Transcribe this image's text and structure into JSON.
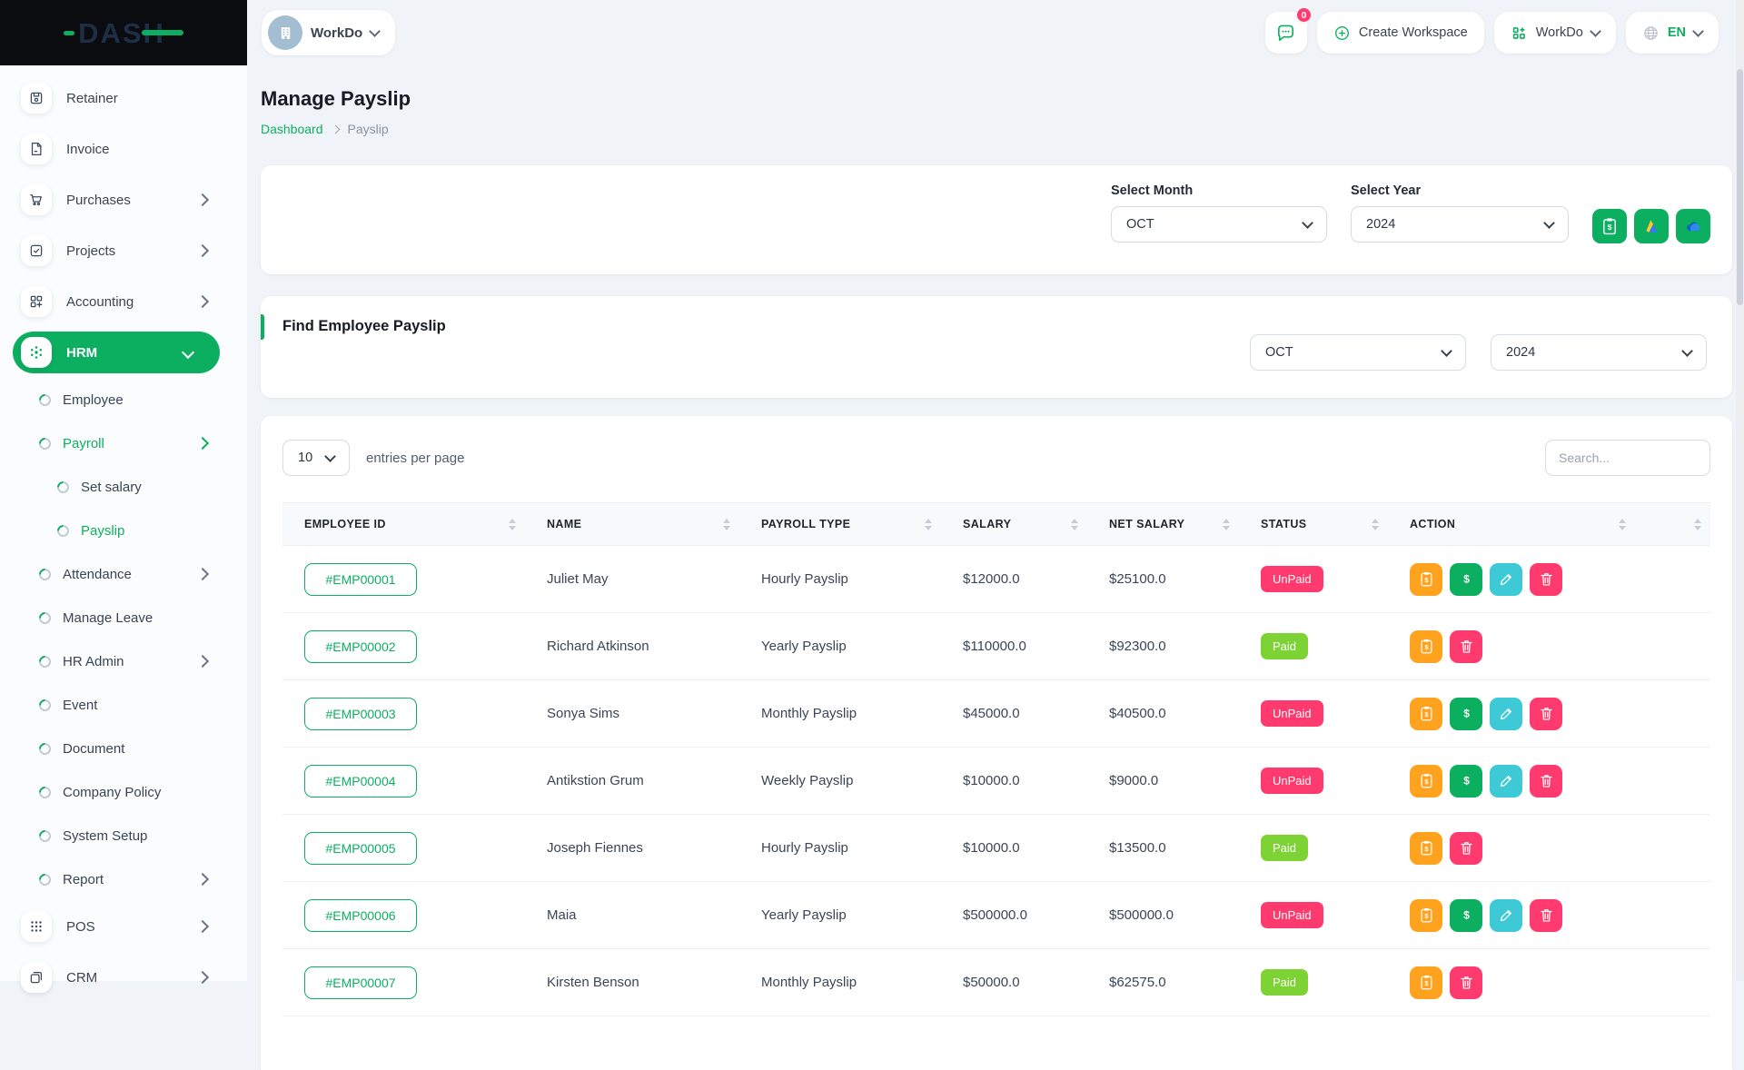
{
  "brand": {
    "logo_text": "DASH"
  },
  "topbar": {
    "workspace_switcher_label": "WorkDo",
    "messages_badge": "0",
    "create_workspace_label": "Create Workspace",
    "workdo_menu_label": "WorkDo",
    "language": "EN"
  },
  "sidebar": {
    "items": [
      {
        "label": "Retainer",
        "icon": "retainer",
        "type": "item"
      },
      {
        "label": "Invoice",
        "icon": "invoice",
        "type": "item"
      },
      {
        "label": "Purchases",
        "icon": "purchases",
        "type": "item",
        "chevron": "right"
      },
      {
        "label": "Projects",
        "icon": "projects",
        "type": "item",
        "chevron": "right"
      },
      {
        "label": "Accounting",
        "icon": "accounting",
        "type": "item",
        "chevron": "right"
      },
      {
        "label": "HRM",
        "icon": "hrm",
        "type": "item",
        "chevron": "down",
        "active": true
      },
      {
        "label": "Employee",
        "type": "sub"
      },
      {
        "label": "Payroll",
        "type": "sub",
        "chevron": "right",
        "active": true
      },
      {
        "label": "Set salary",
        "type": "sub2"
      },
      {
        "label": "Payslip",
        "type": "sub2",
        "active": true
      },
      {
        "label": "Attendance",
        "type": "sub",
        "chevron": "right"
      },
      {
        "label": "Manage Leave",
        "type": "sub"
      },
      {
        "label": "HR Admin",
        "type": "sub",
        "chevron": "right"
      },
      {
        "label": "Event",
        "type": "sub"
      },
      {
        "label": "Document",
        "type": "sub"
      },
      {
        "label": "Company Policy",
        "type": "sub"
      },
      {
        "label": "System Setup",
        "type": "sub"
      },
      {
        "label": "Report",
        "type": "sub",
        "chevron": "right"
      },
      {
        "label": "POS",
        "icon": "pos",
        "type": "item",
        "chevron": "right"
      },
      {
        "label": "CRM",
        "icon": "crm",
        "type": "item",
        "chevron": "right"
      }
    ]
  },
  "page": {
    "title": "Manage Payslip",
    "breadcrumb_dashboard": "Dashboard",
    "breadcrumb_current": "Payslip"
  },
  "filter_card": {
    "month_label": "Select Month",
    "month_value": "OCT",
    "year_label": "Select Year",
    "year_value": "2024",
    "buttons": [
      "bulk-payment",
      "google-drive-export",
      "onedrive-export"
    ]
  },
  "find_card": {
    "title": "Find Employee Payslip",
    "month_value": "OCT",
    "year_value": "2024"
  },
  "table": {
    "entries_value": "10",
    "entries_label": "entries per page",
    "search_placeholder": "Search...",
    "columns": [
      "EMPLOYEE ID",
      "NAME",
      "PAYROLL TYPE",
      "SALARY",
      "NET SALARY",
      "STATUS",
      "ACTION",
      ""
    ],
    "rows": [
      {
        "id": "#EMP00001",
        "name": "Juliet May",
        "payroll_type": "Hourly Payslip",
        "salary": "$12000.0",
        "net_salary": "$25100.0",
        "status": "UnPaid",
        "actions": [
          "payslip",
          "pay",
          "edit",
          "delete"
        ]
      },
      {
        "id": "#EMP00002",
        "name": "Richard Atkinson",
        "payroll_type": "Yearly Payslip",
        "salary": "$110000.0",
        "net_salary": "$92300.0",
        "status": "Paid",
        "actions": [
          "payslip",
          "delete"
        ]
      },
      {
        "id": "#EMP00003",
        "name": "Sonya Sims",
        "payroll_type": "Monthly Payslip",
        "salary": "$45000.0",
        "net_salary": "$40500.0",
        "status": "UnPaid",
        "actions": [
          "payslip",
          "pay",
          "edit",
          "delete"
        ]
      },
      {
        "id": "#EMP00004",
        "name": "Antikstion Grum",
        "payroll_type": "Weekly Payslip",
        "salary": "$10000.0",
        "net_salary": "$9000.0",
        "status": "UnPaid",
        "actions": [
          "payslip",
          "pay",
          "edit",
          "delete"
        ]
      },
      {
        "id": "#EMP00005",
        "name": "Joseph Fiennes",
        "payroll_type": "Hourly Payslip",
        "salary": "$10000.0",
        "net_salary": "$13500.0",
        "status": "Paid",
        "actions": [
          "payslip",
          "delete"
        ]
      },
      {
        "id": "#EMP00006",
        "name": "Maia",
        "payroll_type": "Yearly Payslip",
        "salary": "$500000.0",
        "net_salary": "$500000.0",
        "status": "UnPaid",
        "actions": [
          "payslip",
          "pay",
          "edit",
          "delete"
        ]
      },
      {
        "id": "#EMP00007",
        "name": "Kirsten Benson",
        "payroll_type": "Monthly Payslip",
        "salary": "$50000.0",
        "net_salary": "$62575.0",
        "status": "Paid",
        "actions": [
          "payslip",
          "delete"
        ]
      }
    ]
  },
  "colors": {
    "primary_green": "#0CAF60",
    "paid_badge": "#7DD333",
    "unpaid_badge": "#FF3A6E",
    "payslip_action": "#FFA21D",
    "edit_action": "#3EC9D6",
    "logo_navy": "#1d2f47"
  }
}
